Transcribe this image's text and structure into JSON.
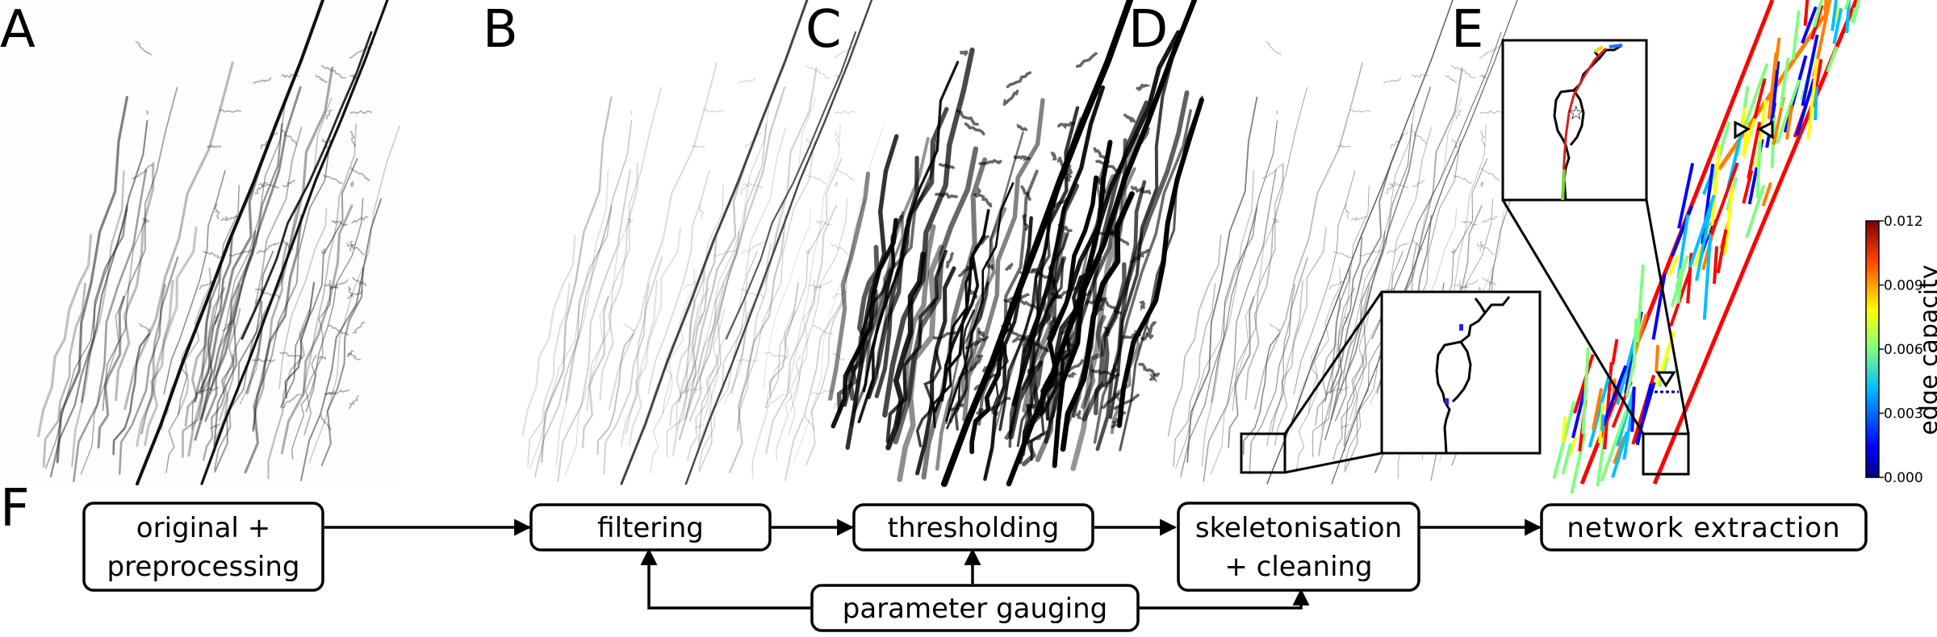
{
  "panels": {
    "a": "A",
    "b": "B",
    "c": "C",
    "d": "D",
    "e": "E",
    "f": "F"
  },
  "colorbar": {
    "label": "edge capacity",
    "ticks": [
      "0.012",
      "0.009",
      "0.006",
      "0.003",
      "0.000"
    ],
    "colormap": [
      "#00007f",
      "#0000ff",
      "#00bfff",
      "#7fff7f",
      "#ffff00",
      "#ff7f00",
      "#ff0000",
      "#7f0000"
    ]
  },
  "flowchart": {
    "original": [
      "original +",
      "preprocessing"
    ],
    "filtering": "filtering",
    "thresholding": "thresholding",
    "skeletonisation": [
      "skeletonisation",
      "+ cleaning"
    ],
    "network": "network extraction",
    "gauging": "parameter gauging"
  },
  "colors": {
    "image_a": "#111111",
    "image_b": "#444444",
    "image_d": "#555555"
  }
}
